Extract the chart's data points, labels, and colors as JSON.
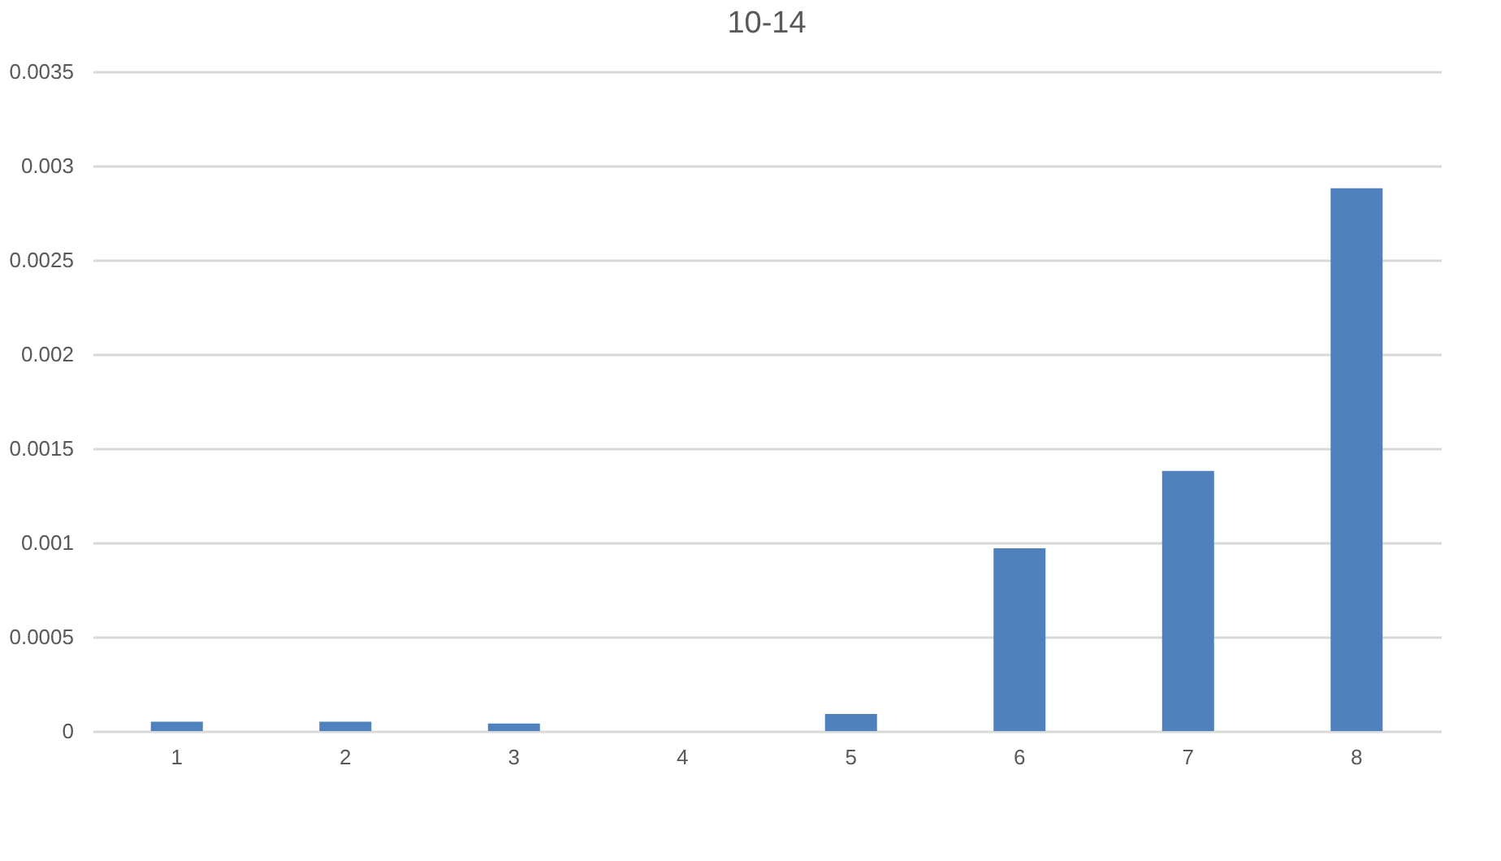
{
  "chart_data": {
    "type": "bar",
    "title": "10-14",
    "categories": [
      "1",
      "2",
      "3",
      "4",
      "5",
      "6",
      "7",
      "8"
    ],
    "values": [
      5e-05,
      5e-05,
      4e-05,
      0,
      9e-05,
      0.00097,
      0.00138,
      0.00288
    ],
    "color": "#4f81bd",
    "ylim": [
      0,
      0.0035
    ],
    "yticks": [
      0,
      0.0005,
      0.001,
      0.0015,
      0.002,
      0.0025,
      0.003,
      0.0035
    ],
    "grid": "y"
  }
}
